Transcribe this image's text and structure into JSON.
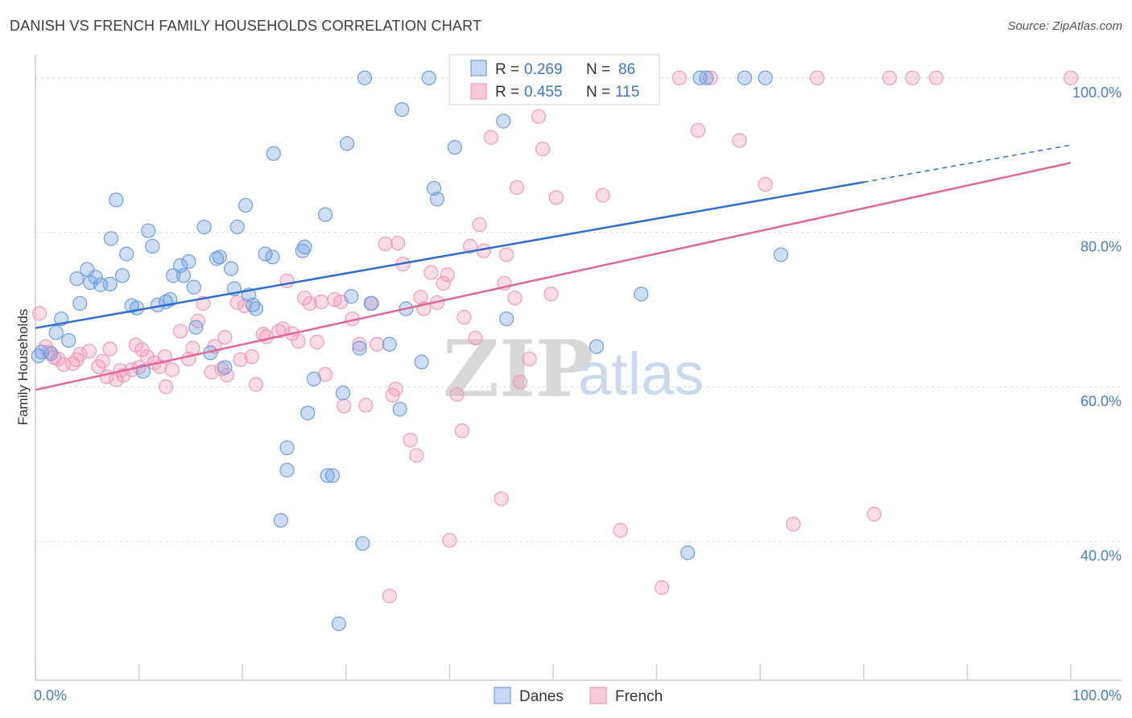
{
  "title": "DANISH VS FRENCH FAMILY HOUSEHOLDS CORRELATION CHART",
  "source": "Source: ZipAtlas.com",
  "watermark": {
    "zip": "ZIP",
    "atlas": "atlas"
  },
  "colors": {
    "danes": "#6f9fe0",
    "danes_line": "#2f6fd0",
    "french": "#f19bb8",
    "french_line": "#e0679a",
    "grid": "#dddddd",
    "tick_label": "#4a7cc9"
  },
  "legend": {
    "row1": {
      "r_label": "R =",
      "r_value": "0.269",
      "n_label": "N =",
      "n_value": "86"
    },
    "row2": {
      "r_label": "R =",
      "r_value": "0.455",
      "n_label": "N =",
      "n_value": "115"
    }
  },
  "chart_data": {
    "type": "scatter",
    "title": "DANISH VS FRENCH FAMILY HOUSEHOLDS CORRELATION CHART",
    "xlabel": "",
    "ylabel": "Family Households",
    "xlim": [
      0,
      100
    ],
    "ylim": [
      22,
      103
    ],
    "x_tick_labels": [
      "0.0%",
      "100.0%"
    ],
    "y_ticks": [
      40,
      60,
      80,
      100
    ],
    "y_tick_labels": [
      "40.0%",
      "60.0%",
      "80.0%",
      "100.0%"
    ],
    "grid": true,
    "legend_position": "top-center",
    "series": [
      {
        "name": "Danes",
        "r": 0.269,
        "n": 86,
        "trend": {
          "x0": 0,
          "y0": 67.6,
          "x1": 80,
          "y1": 86.5,
          "dashed_to_x": 100,
          "dashed_to_y": 91.3
        },
        "points": [
          [
            0.3,
            64
          ],
          [
            0.6,
            64.5
          ],
          [
            1.5,
            64.3
          ],
          [
            2,
            67
          ],
          [
            2.5,
            68.8
          ],
          [
            3.2,
            66
          ],
          [
            4,
            74
          ],
          [
            4.3,
            70.8
          ],
          [
            5,
            75.2
          ],
          [
            5.3,
            73.5
          ],
          [
            5.8,
            74.2
          ],
          [
            6.3,
            73.2
          ],
          [
            7.2,
            73.3
          ],
          [
            7.3,
            79.2
          ],
          [
            7.8,
            84.2
          ],
          [
            8.4,
            74.4
          ],
          [
            8.8,
            77.2
          ],
          [
            9.3,
            70.5
          ],
          [
            9.8,
            70.2
          ],
          [
            10.4,
            62
          ],
          [
            10.9,
            80.2
          ],
          [
            11.3,
            78.2
          ],
          [
            11.8,
            70.6
          ],
          [
            12.6,
            71
          ],
          [
            13,
            71.3
          ],
          [
            13.3,
            74.4
          ],
          [
            14,
            75.7
          ],
          [
            14.3,
            74.4
          ],
          [
            14.8,
            76.2
          ],
          [
            15.3,
            72.9
          ],
          [
            15.5,
            67.7
          ],
          [
            16.3,
            80.7
          ],
          [
            16.9,
            64.4
          ],
          [
            17.5,
            76.6
          ],
          [
            17.8,
            76.8
          ],
          [
            18.3,
            62.5
          ],
          [
            18.9,
            75.3
          ],
          [
            19.2,
            72.7
          ],
          [
            19.5,
            80.7
          ],
          [
            20.3,
            83.5
          ],
          [
            20.6,
            71.9
          ],
          [
            21,
            70.6
          ],
          [
            21.3,
            70.1
          ],
          [
            22.2,
            77.2
          ],
          [
            22.9,
            76.8
          ],
          [
            23,
            90.2
          ],
          [
            23.7,
            42.7
          ],
          [
            24.3,
            52.1
          ],
          [
            24.3,
            49.2
          ],
          [
            25.8,
            77.6
          ],
          [
            26,
            78.1
          ],
          [
            26.3,
            56.6
          ],
          [
            26.9,
            61
          ],
          [
            28,
            82.3
          ],
          [
            28.2,
            48.5
          ],
          [
            28.7,
            48.5
          ],
          [
            29.3,
            29.3
          ],
          [
            29.7,
            59.2
          ],
          [
            30.1,
            91.5
          ],
          [
            30.5,
            71.7
          ],
          [
            31.3,
            65
          ],
          [
            31.6,
            39.7
          ],
          [
            31.8,
            100
          ],
          [
            32.4,
            70.8
          ],
          [
            34.2,
            65.5
          ],
          [
            35.2,
            57.1
          ],
          [
            35.4,
            95.9
          ],
          [
            35.8,
            70.1
          ],
          [
            37.3,
            63.2
          ],
          [
            38,
            100
          ],
          [
            38.5,
            85.7
          ],
          [
            38.8,
            84.3
          ],
          [
            40.5,
            91
          ],
          [
            42.5,
            100
          ],
          [
            43.5,
            100
          ],
          [
            45.2,
            94.4
          ],
          [
            45.5,
            68.8
          ],
          [
            48,
            100
          ],
          [
            54.2,
            65.2
          ],
          [
            58.5,
            72
          ],
          [
            63,
            38.5
          ],
          [
            64.2,
            100
          ],
          [
            64.8,
            100
          ],
          [
            68.5,
            100
          ],
          [
            70.5,
            100
          ],
          [
            72,
            77.1
          ]
        ]
      },
      {
        "name": "French",
        "r": 0.455,
        "n": 115,
        "trend": {
          "x0": 0,
          "y0": 59.6,
          "x1": 100,
          "y1": 89
        },
        "points": [
          [
            0.4,
            69.5
          ],
          [
            1,
            65.2
          ],
          [
            1.3,
            64.5
          ],
          [
            1.8,
            63.8
          ],
          [
            2.2,
            63.6
          ],
          [
            2.7,
            62.9
          ],
          [
            3.6,
            63
          ],
          [
            4,
            63.5
          ],
          [
            4.3,
            64.2
          ],
          [
            5.2,
            64.6
          ],
          [
            6.1,
            62.6
          ],
          [
            6.5,
            63.3
          ],
          [
            6.9,
            61.3
          ],
          [
            7.2,
            64.9
          ],
          [
            7.8,
            60.9
          ],
          [
            8.2,
            62.1
          ],
          [
            8.5,
            61.5
          ],
          [
            9.3,
            62.2
          ],
          [
            9.7,
            65.4
          ],
          [
            10,
            62.5
          ],
          [
            10.3,
            64.8
          ],
          [
            10.8,
            63.9
          ],
          [
            11.5,
            63.1
          ],
          [
            12,
            62.6
          ],
          [
            12.5,
            63.9
          ],
          [
            12.6,
            60
          ],
          [
            13.2,
            62.2
          ],
          [
            14,
            67.2
          ],
          [
            14.8,
            63.6
          ],
          [
            15.2,
            65
          ],
          [
            15.7,
            68.5
          ],
          [
            16.2,
            70.8
          ],
          [
            17,
            61.9
          ],
          [
            17.3,
            65.2
          ],
          [
            18,
            62.3
          ],
          [
            18.3,
            66.4
          ],
          [
            18.5,
            61.5
          ],
          [
            19.5,
            70.9
          ],
          [
            19.8,
            63.5
          ],
          [
            20.2,
            70.5
          ],
          [
            20.9,
            63.9
          ],
          [
            21.3,
            60.3
          ],
          [
            22,
            66.8
          ],
          [
            22.3,
            66.5
          ],
          [
            23.5,
            67.2
          ],
          [
            23.9,
            67.5
          ],
          [
            24.3,
            73.7
          ],
          [
            24.8,
            66.9
          ],
          [
            25.4,
            65.9
          ],
          [
            26,
            71.5
          ],
          [
            26.5,
            70.8
          ],
          [
            27.2,
            65.8
          ],
          [
            27.6,
            71
          ],
          [
            28,
            61.6
          ],
          [
            28.9,
            71.3
          ],
          [
            29.5,
            71
          ],
          [
            29.8,
            57.5
          ],
          [
            30.6,
            68.8
          ],
          [
            31.3,
            65.5
          ],
          [
            31.9,
            57.6
          ],
          [
            32.5,
            70.8
          ],
          [
            33,
            65.5
          ],
          [
            33.8,
            78.5
          ],
          [
            34.2,
            32.9
          ],
          [
            34.5,
            58.9
          ],
          [
            34.8,
            59.7
          ],
          [
            35,
            78.6
          ],
          [
            35.5,
            75.9
          ],
          [
            36.2,
            53.1
          ],
          [
            36.8,
            51.1
          ],
          [
            37.2,
            71.6
          ],
          [
            37.5,
            70.1
          ],
          [
            38.2,
            74.8
          ],
          [
            38.8,
            70.9
          ],
          [
            39.4,
            73.4
          ],
          [
            39.8,
            74.5
          ],
          [
            40,
            40.1
          ],
          [
            40.7,
            59
          ],
          [
            41.2,
            54.3
          ],
          [
            41.4,
            69
          ],
          [
            42,
            78.2
          ],
          [
            42.5,
            66.3
          ],
          [
            42.9,
            81
          ],
          [
            43.3,
            77.6
          ],
          [
            44,
            92.3
          ],
          [
            45,
            45.5
          ],
          [
            45.3,
            73.4
          ],
          [
            45.5,
            77.1
          ],
          [
            46.3,
            71.5
          ],
          [
            46.5,
            85.8
          ],
          [
            46.8,
            60.6
          ],
          [
            47.7,
            63.6
          ],
          [
            48.6,
            95
          ],
          [
            49,
            90.8
          ],
          [
            49.8,
            72
          ],
          [
            50.3,
            84.5
          ],
          [
            50.5,
            100
          ],
          [
            52.4,
            100
          ],
          [
            54.8,
            84.8
          ],
          [
            56.5,
            41.4
          ],
          [
            59.5,
            100
          ],
          [
            60.5,
            34
          ],
          [
            62.2,
            100
          ],
          [
            64,
            93.2
          ],
          [
            65.2,
            100
          ],
          [
            68,
            91.9
          ],
          [
            70.5,
            86.2
          ],
          [
            73.2,
            42.2
          ],
          [
            75.5,
            100
          ],
          [
            81,
            43.5
          ],
          [
            82.5,
            100
          ],
          [
            84.7,
            100
          ],
          [
            87,
            100
          ],
          [
            100,
            100
          ]
        ]
      }
    ]
  },
  "bottom_legend": {
    "danes": "Danes",
    "french": "French"
  }
}
